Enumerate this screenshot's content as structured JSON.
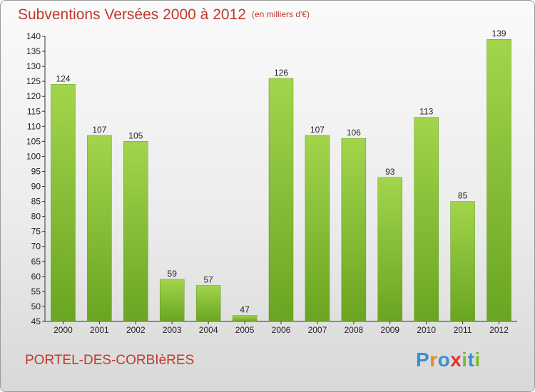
{
  "header": {
    "title": "Subventions Versées 2000 à 2012",
    "unit": "(en milliers d'€)"
  },
  "footer": {
    "commune": "PORTEL-DES-CORBIèRES"
  },
  "logo": {
    "text": "Proxiti",
    "letters": [
      {
        "ch": "P",
        "color": "#3a8fd0"
      },
      {
        "ch": "r",
        "color": "#e8892c"
      },
      {
        "ch": "o",
        "color": "#3a8fd0"
      },
      {
        "ch": "x",
        "color": "#e2342c"
      },
      {
        "ch": "i",
        "color": "#7bbd2c"
      },
      {
        "ch": "t",
        "color": "#3a8fd0"
      },
      {
        "ch": "i",
        "color": "#7bbd2c"
      }
    ]
  },
  "chart_data": {
    "type": "bar",
    "title": "Subventions Versées 2000 à 2012",
    "subtitle": "(en milliers d'€)",
    "xlabel": "",
    "ylabel": "",
    "categories": [
      "2000",
      "2001",
      "2002",
      "2003",
      "2004",
      "2005",
      "2006",
      "2007",
      "2008",
      "2009",
      "2010",
      "2011",
      "2012"
    ],
    "values": [
      124,
      107,
      105,
      59,
      57,
      47,
      126,
      107,
      106,
      93,
      113,
      85,
      139
    ],
    "ylim": [
      45,
      140
    ],
    "yticks": [
      45,
      50,
      55,
      60,
      65,
      70,
      75,
      80,
      85,
      90,
      95,
      100,
      105,
      110,
      115,
      120,
      125,
      130,
      135,
      140
    ],
    "grid": false,
    "bar_color": "#7ab82e",
    "bar_color_light": "#9fd24a"
  }
}
